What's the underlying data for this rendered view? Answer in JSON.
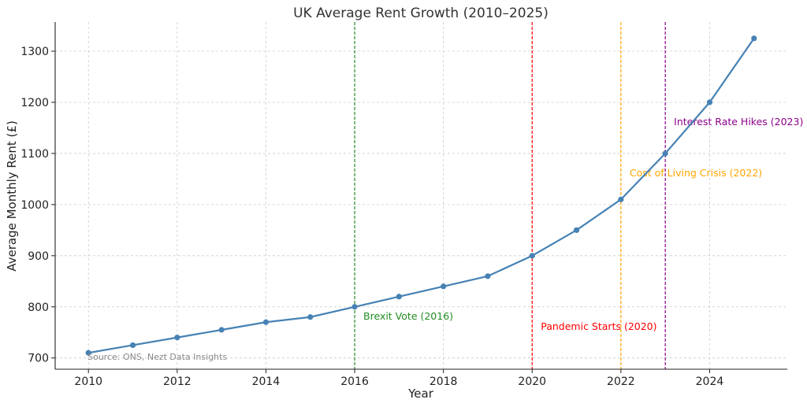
{
  "chart_data": {
    "type": "line",
    "title": "UK Average Rent Growth (2010–2025)",
    "xlabel": "Year",
    "ylabel": "Average Monthly Rent (£)",
    "xlim": [
      2009.25,
      2025.75
    ],
    "ylim": [
      678,
      1357
    ],
    "xticks": [
      2010,
      2012,
      2014,
      2016,
      2018,
      2020,
      2022,
      2024
    ],
    "yticks": [
      700,
      800,
      900,
      1000,
      1100,
      1200,
      1300
    ],
    "grid": true,
    "series": [
      {
        "color": "#4682b4",
        "x": [
          2010,
          2011,
          2012,
          2013,
          2014,
          2015,
          2016,
          2017,
          2018,
          2019,
          2020,
          2021,
          2022,
          2023,
          2024,
          2025
        ],
        "y": [
          710,
          725,
          740,
          755,
          770,
          780,
          800,
          820,
          840,
          860,
          900,
          950,
          1010,
          1100,
          1200,
          1325
        ]
      }
    ],
    "events": [
      {
        "year": 2016,
        "label": "Brexit Vote (2016)",
        "color": "#228b22",
        "label_y": 775
      },
      {
        "year": 2020,
        "label": "Pandemic Starts (2020)",
        "color": "#ff0000",
        "label_y": 755
      },
      {
        "year": 2022,
        "label": "Cost of Living Crisis (2022)",
        "color": "#ffa500",
        "label_y": 1055
      },
      {
        "year": 2023,
        "label": "Interest Rate Hikes (2023)",
        "color": "#8b008b",
        "label_y": 1155
      }
    ],
    "source": "Source: ONS, Nezt Data Insights"
  }
}
